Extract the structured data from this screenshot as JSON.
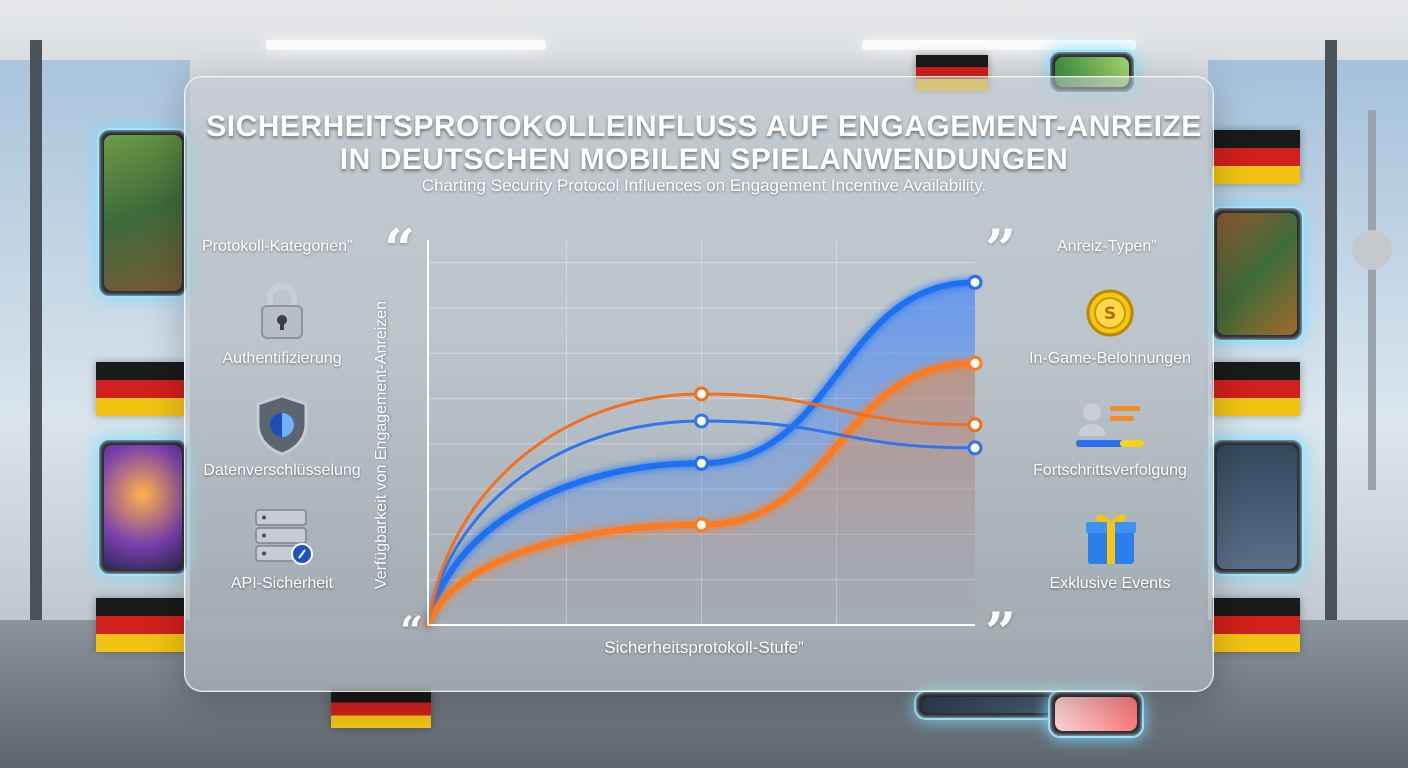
{
  "title_line1": "Sicherheitsprotokolleinfluss auf Engagement-Anreize",
  "title_line2": "in deutschen mobilen Spielanwendungen",
  "subtitle": "Charting Security Protocol Influences on Engagement Incentive Availability.",
  "left_panel": {
    "heading": "Protokoll-Kategorien”",
    "items": [
      {
        "label": "Authentifizierung",
        "icon": "padlock-icon"
      },
      {
        "label": "Datenverschlüsselung",
        "icon": "shield-icon"
      },
      {
        "label": "API-Sicherheit",
        "icon": "server-icon"
      }
    ]
  },
  "right_panel": {
    "heading": "Anreiz-Typen”",
    "items": [
      {
        "label": "In-Game-Belohnungen",
        "icon": "coin-icon"
      },
      {
        "label": "Fortschrittsverfolgung",
        "icon": "progress-profile-icon"
      },
      {
        "label": "Exklusive Events",
        "icon": "gift-icon"
      }
    ]
  },
  "quotes": {
    "open": "“",
    "close": "”"
  },
  "chart_data": {
    "type": "line",
    "xlabel": "Sicherheitsprotokoll-Stufe”",
    "ylabel": "Verfügbarkeit von Engagement-Anreizen",
    "x": [
      0,
      1,
      2
    ],
    "xlim": [
      0,
      2
    ],
    "ylim": [
      0,
      10
    ],
    "grid": true,
    "legend": "none",
    "series": [
      {
        "color": "#1f6ff2",
        "glow": true,
        "values": [
          0,
          4.2,
          8.9
        ]
      },
      {
        "color": "#ff7a1a",
        "glow": true,
        "values": [
          0,
          2.6,
          6.8
        ]
      },
      {
        "color": "#2f76ee",
        "glow": false,
        "values": [
          0,
          5.3,
          4.6
        ]
      },
      {
        "color": "#f36f1b",
        "glow": false,
        "values": [
          0,
          6.0,
          5.2
        ]
      }
    ]
  },
  "colors": {
    "flag_black": "#1a1a1a",
    "flag_red": "#d1201d",
    "flag_gold": "#f2c313"
  }
}
